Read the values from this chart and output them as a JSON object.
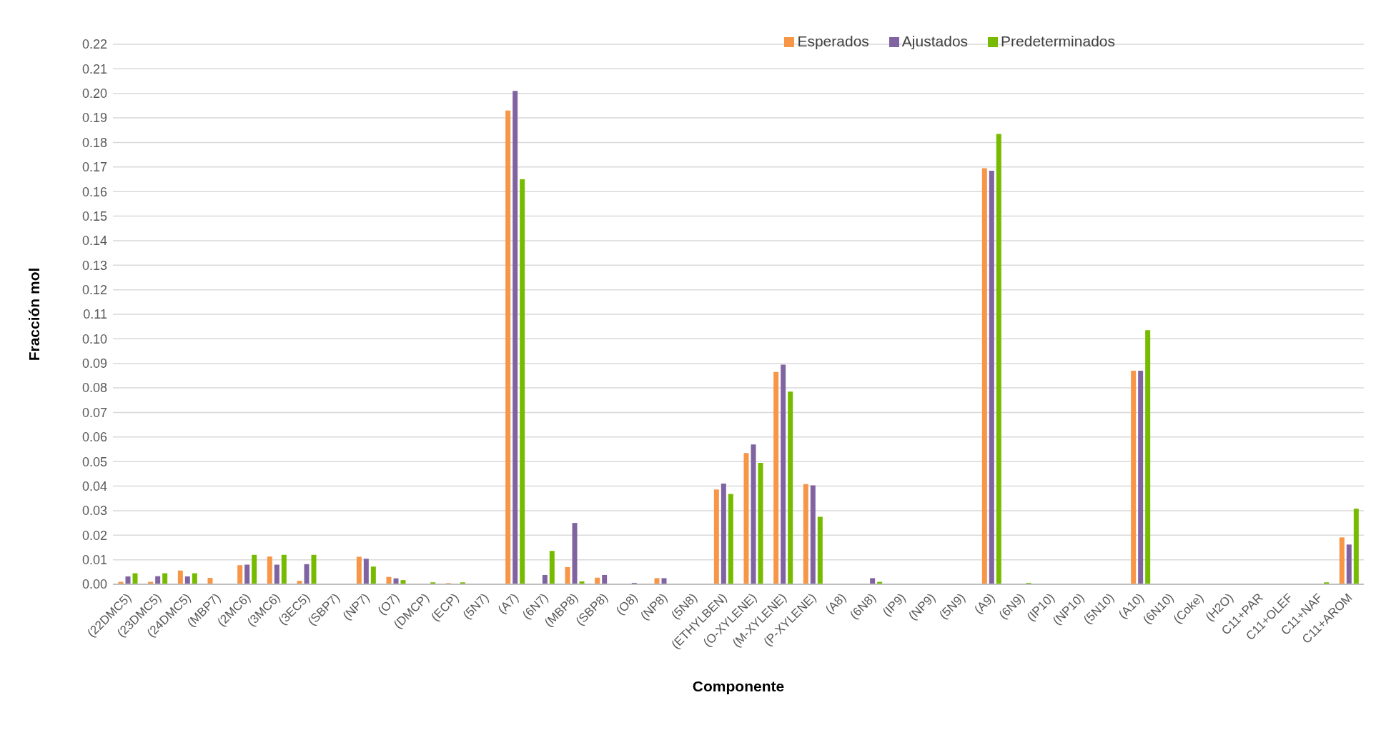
{
  "chart_data": {
    "type": "bar",
    "xlabel": "Componente",
    "ylabel": "Fracción mol",
    "categories": [
      "(22DMC5)",
      "(23DMC5)",
      "(24DMC5)",
      "(MBP7)",
      "(2MC6)",
      "(3MC6)",
      "(3EC5)",
      "(SBP7)",
      "(NP7)",
      "(O7)",
      "(DMCP)",
      "(ECP)",
      "(5N7)",
      "(A7)",
      "(6N7)",
      "(MBP8)",
      "(SBP8)",
      "(O8)",
      "(NP8)",
      "(5N8)",
      "(ETHYLBEN)",
      "(O-XYLENE)",
      "(M-XYLENE)",
      "(P-XYLENE)",
      "(A8)",
      "(6N8)",
      "(IP9)",
      "(NP9)",
      "(5N9)",
      "(A9)",
      "(6N9)",
      "(IP10)",
      "(NP10)",
      "(5N10)",
      "(A10)",
      "(6N10)",
      "(Coke)",
      "(H2O)",
      "C11+PAR",
      "C11+OLEF",
      "C11+NAF",
      "C11+AROM"
    ],
    "series": [
      {
        "name": "Esperados",
        "color": "#f79646",
        "values": [
          0.001,
          0.001,
          0.0056,
          0.0026,
          0.0078,
          0.0113,
          0.0014,
          0,
          0.0112,
          0.003,
          0,
          0.0005,
          0,
          0.193,
          0,
          0.007,
          0.0027,
          0,
          0.0025,
          0,
          0.0386,
          0.0535,
          0.0865,
          0.0408,
          0,
          0,
          0,
          0,
          0,
          0.1695,
          0,
          0,
          0,
          0,
          0.087,
          0,
          0,
          0,
          0,
          0,
          0,
          0.0191
        ]
      },
      {
        "name": "Ajustados",
        "color": "#8064a2",
        "values": [
          0.0032,
          0.0033,
          0.0032,
          0,
          0.008,
          0.008,
          0.0082,
          0,
          0.0104,
          0.0024,
          0,
          0,
          0,
          0.201,
          0.0038,
          0.025,
          0.0038,
          0.0006,
          0.0025,
          0,
          0.041,
          0.057,
          0.0895,
          0.0403,
          0,
          0.0025,
          0,
          0,
          0,
          0.1685,
          0,
          0,
          0,
          0,
          0.087,
          0,
          0,
          0,
          0,
          0,
          0,
          0.0162
        ]
      },
      {
        "name": "Predeterminados",
        "color": "#77bb00",
        "values": [
          0.0045,
          0.0045,
          0.0045,
          0,
          0.012,
          0.012,
          0.012,
          0,
          0.0072,
          0.0017,
          0.0008,
          0.0008,
          0,
          0.165,
          0.0136,
          0.0012,
          0,
          0,
          0,
          0,
          0.0368,
          0.0495,
          0.0785,
          0.0275,
          0,
          0.001,
          0,
          0,
          0,
          0.1835,
          0.0006,
          0,
          0,
          0,
          0.1035,
          0,
          0,
          0,
          0,
          0,
          0.0008,
          0.0308
        ]
      }
    ],
    "ylim": [
      0,
      0.22
    ],
    "yticks": [
      {
        "value": 0,
        "label": "0.00"
      },
      {
        "value": 0.01,
        "label": "0.01"
      },
      {
        "value": 0.02,
        "label": "0.02"
      },
      {
        "value": 0.03,
        "label": "0.03"
      },
      {
        "value": 0.04,
        "label": "0.04"
      },
      {
        "value": 0.05,
        "label": "0.05"
      },
      {
        "value": 0.06,
        "label": "0.06"
      },
      {
        "value": 0.07,
        "label": "0.07"
      },
      {
        "value": 0.08,
        "label": "0.08"
      },
      {
        "value": 0.09,
        "label": "0.09"
      },
      {
        "value": 0.1,
        "label": "0.10"
      },
      {
        "value": 0.11,
        "label": "0.11"
      },
      {
        "value": 0.12,
        "label": "0.12"
      },
      {
        "value": 0.13,
        "label": "0.13"
      },
      {
        "value": 0.14,
        "label": "0.14"
      },
      {
        "value": 0.15,
        "label": "0.15"
      },
      {
        "value": 0.16,
        "label": "0.16"
      },
      {
        "value": 0.17,
        "label": "0.17"
      },
      {
        "value": 0.18,
        "label": "0.18"
      },
      {
        "value": 0.19,
        "label": "0.19"
      },
      {
        "value": 0.2,
        "label": "0.20"
      },
      {
        "value": 0.21,
        "label": "0.21"
      },
      {
        "value": 0.22,
        "label": "0.22"
      }
    ],
    "grid": "y",
    "legend": "top right"
  }
}
